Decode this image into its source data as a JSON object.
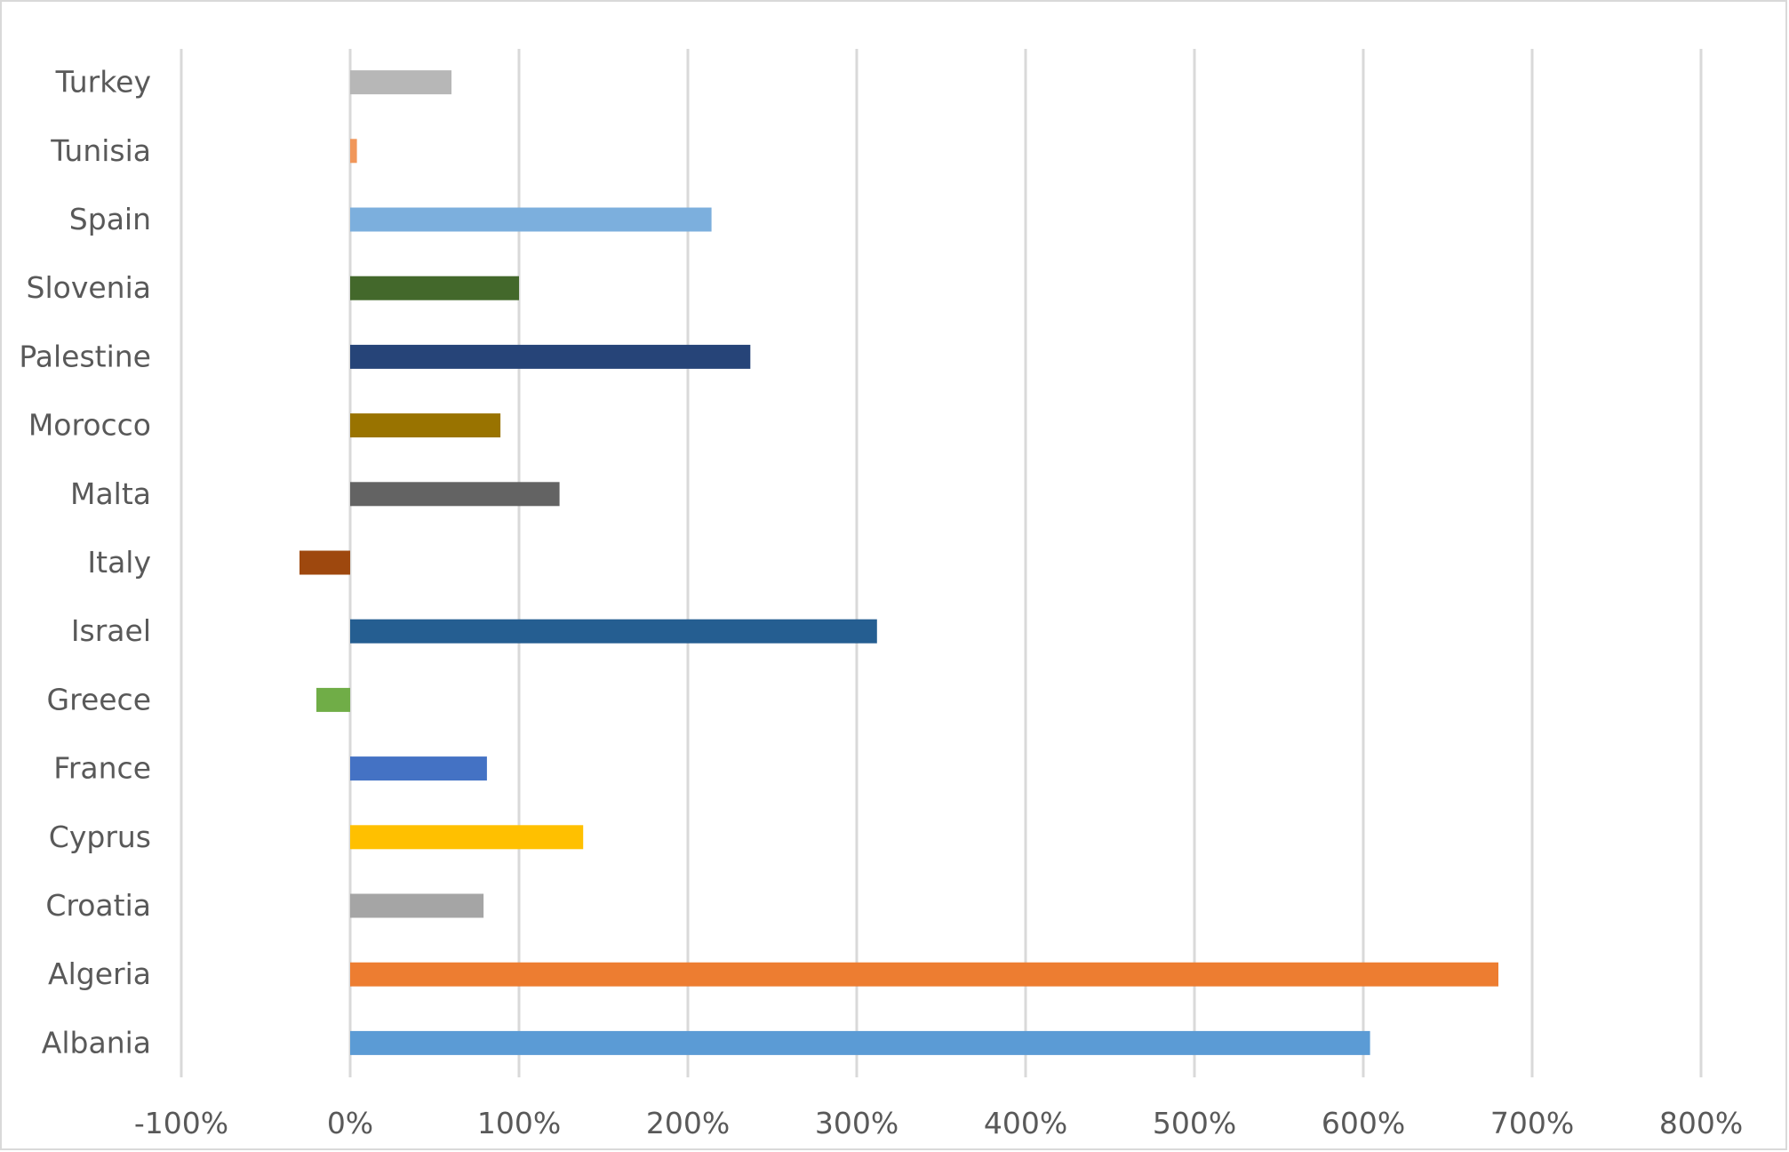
{
  "chart_data": {
    "type": "bar",
    "orientation": "horizontal",
    "title": "",
    "xlabel": "",
    "ylabel": "",
    "categories": [
      "Albania",
      "Algeria",
      "Croatia",
      "Cyprus",
      "France",
      "Greece",
      "Israel",
      "Italy",
      "Malta",
      "Morocco",
      "Palestine",
      "Slovenia",
      "Spain",
      "Tunisia",
      "Turkey"
    ],
    "values": [
      604,
      680,
      79,
      138,
      81,
      -20,
      312,
      -30,
      124,
      89,
      237,
      100,
      214,
      4,
      60
    ],
    "value_unit": "%",
    "colors": [
      "#5b9bd5",
      "#ed7d31",
      "#a5a5a5",
      "#ffc000",
      "#4472c4",
      "#70ad47",
      "#255e91",
      "#9e480e",
      "#636363",
      "#997300",
      "#264478",
      "#43682b",
      "#7cafdd",
      "#f1975a",
      "#b7b7b7"
    ],
    "xlim": [
      -100,
      800
    ],
    "xticks": [
      -100,
      0,
      100,
      200,
      300,
      400,
      500,
      600,
      700,
      800
    ],
    "xtick_labels": [
      "-100%",
      "0%",
      "100%",
      "200%",
      "300%",
      "400%",
      "500%",
      "600%",
      "700%",
      "800%"
    ],
    "gridlines": "vertical",
    "gridline_color": "#d9d9d9",
    "label_color": "#595959",
    "legend": "none"
  }
}
